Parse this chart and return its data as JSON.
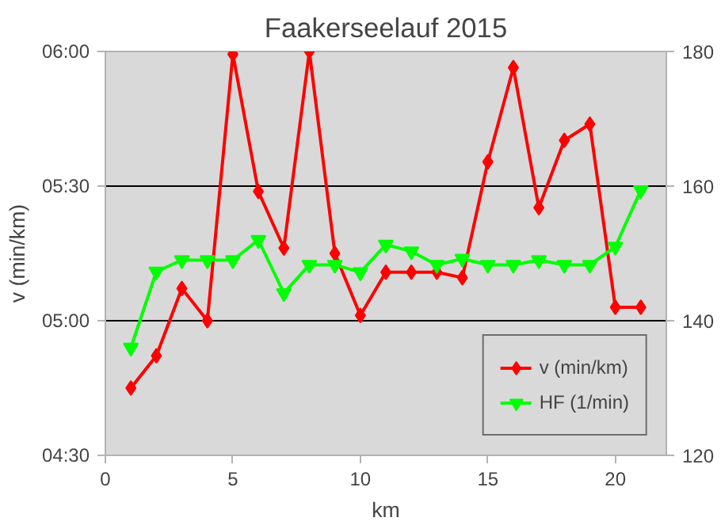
{
  "chart_data": {
    "type": "line",
    "title": "Faakerseelauf 2015",
    "xlabel": "km",
    "ylabel": "v (min/km)",
    "x": [
      1,
      2,
      3,
      4,
      5,
      6,
      7,
      8,
      9,
      10,
      11,
      12,
      13,
      14,
      15,
      16,
      17,
      18,
      19,
      20,
      21
    ],
    "series": [
      {
        "name": "v (min/km)",
        "color": "#ff0000",
        "marker": "diamond",
        "values": [
          4.75,
          4.87,
          5.12,
          5.0,
          5.99,
          5.48,
          5.27,
          6.0,
          5.25,
          5.02,
          5.18,
          5.18,
          5.18,
          5.16,
          5.59,
          5.94,
          5.42,
          5.67,
          5.73,
          5.05,
          5.05
        ]
      },
      {
        "name": "HF (1/min)",
        "color": "#00ff00",
        "marker": "triangle",
        "axis": "y2",
        "values": [
          136,
          147.3,
          149,
          149,
          149,
          152,
          144.1,
          148.3,
          148.3,
          147.2,
          151.3,
          150.3,
          148.3,
          149.2,
          148.3,
          148.3,
          149,
          148.3,
          148.3,
          151,
          159.4
        ]
      }
    ],
    "xlim": [
      0,
      22
    ],
    "xticks": [
      0,
      5,
      10,
      15,
      20
    ],
    "ylim": [
      4.5,
      6
    ],
    "yticks": [
      {
        "value": 4.5,
        "label": "04:30"
      },
      {
        "value": 5,
        "label": "05:00"
      },
      {
        "value": 5.5,
        "label": "05:30"
      },
      {
        "value": 6,
        "label": "06:00"
      }
    ],
    "y2lim": [
      120,
      180
    ],
    "y2ticks": [
      120,
      140,
      160,
      180
    ],
    "grid": "y",
    "legend": "bottom right",
    "line_style": "solid"
  }
}
